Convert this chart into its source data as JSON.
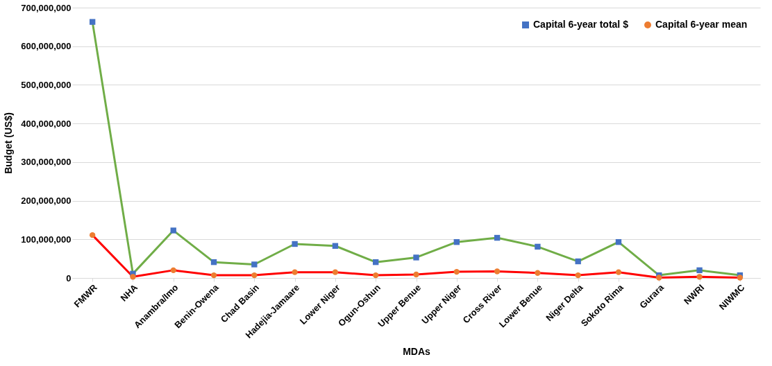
{
  "chart_data": {
    "type": "line",
    "xlabel": "MDAs",
    "ylabel": "Budget (US$)",
    "categories": [
      "FMWR",
      "NHA",
      "Anambra/Imo",
      "Benin-Owena",
      "Chad Basin",
      "Hadejia-Jamaare",
      "Lower Niger",
      "Ogun-Oshun",
      "Upper Benue",
      "Upper Niger",
      "Cross River",
      "Lower Benue",
      "Niger Delta",
      "Sokoto Rima",
      "Gurara",
      "NWRI",
      "NIWMC"
    ],
    "series": [
      {
        "name": "Capital 6-year total $",
        "color": "#70ad47",
        "marker": "square",
        "line_style": "solid",
        "colors": [
          "#4472c4",
          "#4472c4",
          "#4472c4",
          "#4472c4",
          "#4472c4",
          "#4472c4",
          "#4472c4",
          "#4472c4",
          "#4472c4",
          "#4472c4",
          "#4472c4",
          "#4472c4",
          "#4472c4",
          "#4472c4",
          "#4472c4",
          "#4472c4",
          "#4472c4"
        ],
        "values": [
          663000000,
          11000000,
          123000000,
          41000000,
          35000000,
          88000000,
          83000000,
          41000000,
          53000000,
          93000000,
          104000000,
          81000000,
          43000000,
          93000000,
          7000000,
          20000000,
          7000000
        ]
      },
      {
        "name": "Capital 6-year mean",
        "color": "#ff0000",
        "marker": "circle",
        "line_style": "solid",
        "colors": [
          "#ed7d31",
          "#ed7d31",
          "#ed7d31",
          "#ed7d31",
          "#ed7d31",
          "#ed7d31",
          "#ed7d31",
          "#ed7d31",
          "#ed7d31",
          "#ed7d31",
          "#ed7d31",
          "#ed7d31",
          "#ed7d31",
          "#ed7d31",
          "#ed7d31",
          "#ed7d31",
          "#ed7d31"
        ],
        "values": [
          111000000,
          3000000,
          20000000,
          7000000,
          7000000,
          15000000,
          15000000,
          7000000,
          9000000,
          16000000,
          17000000,
          13000000,
          7000000,
          15000000,
          1000000,
          3000000,
          1000000
        ]
      }
    ],
    "ylim": [
      0,
      700000000
    ],
    "yticks": [
      {
        "value": 0,
        "label": "0"
      },
      {
        "value": 100000000,
        "label": "100,000,000"
      },
      {
        "value": 200000000,
        "label": "200,000,000"
      },
      {
        "value": 300000000,
        "label": "300,000,000"
      },
      {
        "value": 400000000,
        "label": "400,000,000"
      },
      {
        "value": 500000000,
        "label": "500,000,000"
      },
      {
        "value": 600000000,
        "label": "600,000,000"
      },
      {
        "value": 700000000,
        "label": "700,000,000"
      }
    ],
    "grid": "y",
    "legend": "top right"
  }
}
